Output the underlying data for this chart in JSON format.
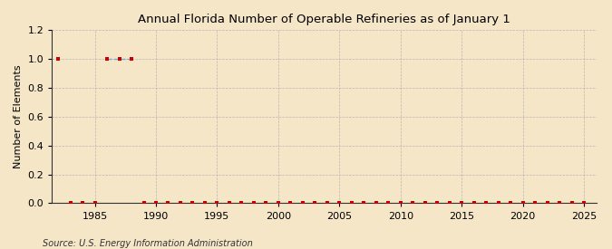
{
  "title": "Annual Florida Number of Operable Refineries as of January 1",
  "ylabel": "Number of Elements",
  "source_text": "Source: U.S. Energy Information Administration",
  "background_color": "#f5e6c8",
  "plot_background_color": "#f5e6c8",
  "grid_color": "#aaaaaa",
  "marker_color": "#cc0000",
  "line_color": "#77aacc",
  "xlim": [
    1981.5,
    2026
  ],
  "ylim": [
    0.0,
    1.2
  ],
  "xticks": [
    1985,
    1990,
    1995,
    2000,
    2005,
    2010,
    2015,
    2020,
    2025
  ],
  "yticks": [
    0.0,
    0.2,
    0.4,
    0.6,
    0.8,
    1.0,
    1.2
  ],
  "years_all": [
    1982,
    1983,
    1984,
    1985,
    1986,
    1987,
    1988,
    1989,
    1990,
    1991,
    1992,
    1993,
    1994,
    1995,
    1996,
    1997,
    1998,
    1999,
    2000,
    2001,
    2002,
    2003,
    2004,
    2005,
    2006,
    2007,
    2008,
    2009,
    2010,
    2011,
    2012,
    2013,
    2014,
    2015,
    2016,
    2017,
    2018,
    2019,
    2020,
    2021,
    2022,
    2023,
    2024,
    2025
  ],
  "values_all": [
    1,
    0,
    0,
    0,
    1,
    1,
    1,
    0,
    0,
    0,
    0,
    0,
    0,
    0,
    0,
    0,
    0,
    0,
    0,
    0,
    0,
    0,
    0,
    0,
    0,
    0,
    0,
    0,
    0,
    0,
    0,
    0,
    0,
    0,
    0,
    0,
    0,
    0,
    0,
    0,
    0,
    0,
    0,
    0
  ],
  "line_segments": [
    {
      "x": [
        1986,
        1987,
        1988
      ],
      "y": [
        1,
        1,
        1
      ]
    }
  ]
}
